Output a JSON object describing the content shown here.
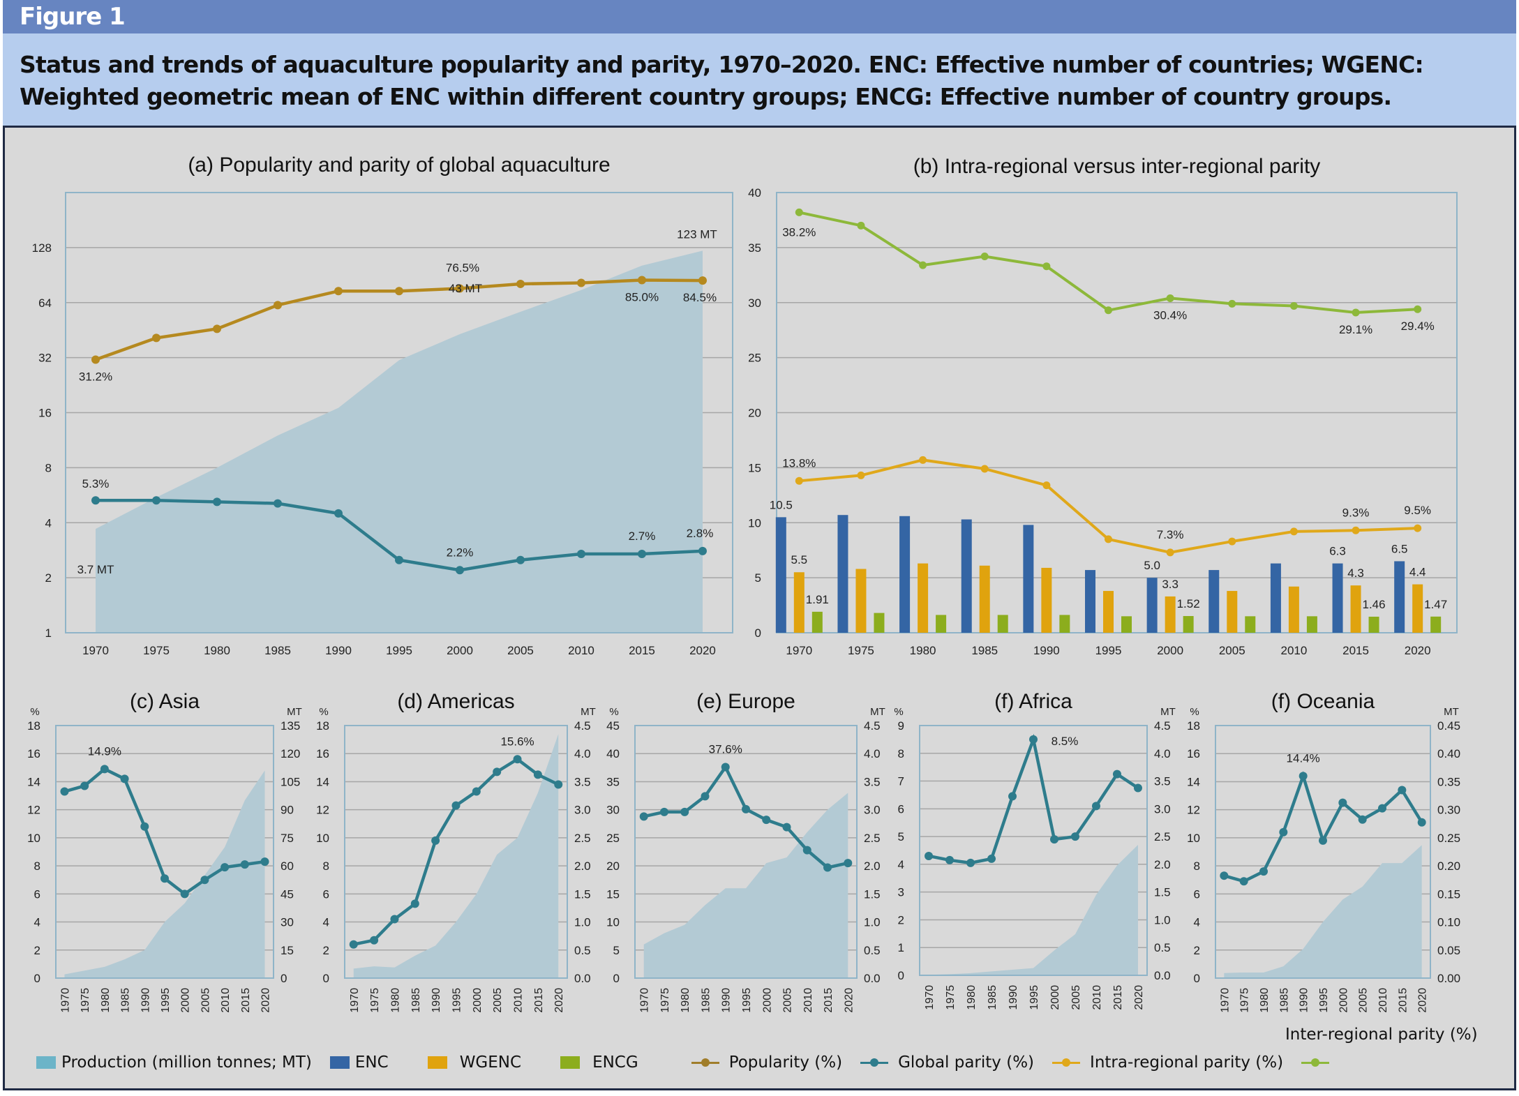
{
  "figure_label": "Figure 1",
  "caption": "Status and trends of aquaculture popularity and parity, 1970–2020. ENC: Effective number of countries; WGENC: Weighted geometric mean of ENC within different country groups; ENCG: Effective number of country groups.",
  "colors": {
    "production": "#b3cad4",
    "popularity": "#b5891f",
    "global_parity": "#2e7c8c",
    "intra_regional": "#e0a81a",
    "inter_regional": "#8db83a",
    "enc": "#3465a4",
    "wgenc": "#e0a30e",
    "encg": "#8cad1d"
  },
  "legend": {
    "production": "Production (million tonnes; MT)",
    "enc": "ENC",
    "wgenc": "WGENC",
    "encg": "ENCG",
    "popularity": "Popularity (%)",
    "global_parity": "Global parity (%)",
    "intra_regional": "Intra-regional parity (%)",
    "inter_regional": "Inter-regional parity (%)"
  },
  "chart_data": [
    {
      "id": "a",
      "type": "line",
      "title": "(a) Popularity and parity of global aquaculture",
      "x": [
        1970,
        1975,
        1980,
        1985,
        1990,
        1995,
        2000,
        2005,
        2010,
        2015,
        2020
      ],
      "yscale": "log2",
      "ylim": [
        1,
        256
      ],
      "yticks": [
        1,
        2,
        4,
        8,
        16,
        32,
        64,
        128
      ],
      "grid": true,
      "series": [
        {
          "name": "Production (million tonnes; MT)",
          "kind": "area",
          "values": [
            3.7,
            5.5,
            8,
            12,
            17,
            31,
            43,
            57,
            75,
            102,
            123
          ]
        },
        {
          "name": "Popularity (%)",
          "kind": "line",
          "values": [
            31.2,
            41,
            46,
            62,
            74,
            74,
            76.5,
            81,
            82,
            85.0,
            84.5
          ]
        },
        {
          "name": "Global parity (%)",
          "kind": "line",
          "values": [
            5.3,
            5.3,
            5.2,
            5.1,
            4.5,
            2.5,
            2.2,
            2.5,
            2.7,
            2.7,
            2.8
          ]
        }
      ],
      "annotations": [
        {
          "series": "Production (million tonnes; MT)",
          "x": 1970,
          "text": "3.7 MT"
        },
        {
          "series": "Production (million tonnes; MT)",
          "x": 2000,
          "text": "43 MT"
        },
        {
          "series": "Production (million tonnes; MT)",
          "x": 2020,
          "text": "123 MT"
        },
        {
          "series": "Popularity (%)",
          "x": 1970,
          "text": "31.2%"
        },
        {
          "series": "Popularity (%)",
          "x": 2000,
          "text": "76.5%"
        },
        {
          "series": "Popularity (%)",
          "x": 2015,
          "text": "85.0%"
        },
        {
          "series": "Popularity (%)",
          "x": 2020,
          "text": "84.5%"
        },
        {
          "series": "Global parity (%)",
          "x": 1970,
          "text": "5.3%"
        },
        {
          "series": "Global parity (%)",
          "x": 2000,
          "text": "2.2%"
        },
        {
          "series": "Global parity (%)",
          "x": 2015,
          "text": "2.7%"
        },
        {
          "series": "Global parity (%)",
          "x": 2020,
          "text": "2.8%"
        }
      ]
    },
    {
      "id": "b",
      "type": "bar",
      "title": "(b) Intra-regional versus inter-regional parity",
      "x": [
        1970,
        1975,
        1980,
        1985,
        1990,
        1995,
        2000,
        2005,
        2010,
        2015,
        2020
      ],
      "ylim": [
        0,
        40
      ],
      "yticks": [
        0,
        5,
        10,
        15,
        20,
        25,
        30,
        35,
        40
      ],
      "grid": true,
      "series": [
        {
          "name": "ENC",
          "kind": "bar",
          "values": [
            10.5,
            10.7,
            10.6,
            10.3,
            9.8,
            5.7,
            5.0,
            5.7,
            6.3,
            6.3,
            6.5
          ]
        },
        {
          "name": "WGENC",
          "kind": "bar",
          "values": [
            5.5,
            5.8,
            6.3,
            6.1,
            5.9,
            3.8,
            3.3,
            3.8,
            4.2,
            4.3,
            4.4
          ]
        },
        {
          "name": "ENCG",
          "kind": "bar",
          "values": [
            1.91,
            1.8,
            1.62,
            1.62,
            1.62,
            1.5,
            1.52,
            1.5,
            1.5,
            1.46,
            1.47
          ]
        },
        {
          "name": "Intra-regional parity (%)",
          "kind": "line",
          "values": [
            13.8,
            14.3,
            15.7,
            14.9,
            13.4,
            8.5,
            7.3,
            8.3,
            9.2,
            9.3,
            9.5
          ]
        },
        {
          "name": "Inter-regional parity (%)",
          "kind": "line",
          "values": [
            38.2,
            37.0,
            33.4,
            34.2,
            33.3,
            29.3,
            30.4,
            29.9,
            29.7,
            29.1,
            29.4
          ]
        }
      ],
      "annotations": [
        {
          "series": "ENC",
          "x": 1970,
          "text": "10.5"
        },
        {
          "series": "ENC",
          "x": 2000,
          "text": "5.0"
        },
        {
          "series": "ENC",
          "x": 2015,
          "text": "6.3"
        },
        {
          "series": "ENC",
          "x": 2020,
          "text": "6.5"
        },
        {
          "series": "WGENC",
          "x": 1970,
          "text": "5.5"
        },
        {
          "series": "WGENC",
          "x": 2000,
          "text": "3.3"
        },
        {
          "series": "WGENC",
          "x": 2015,
          "text": "4.3"
        },
        {
          "series": "WGENC",
          "x": 2020,
          "text": "4.4"
        },
        {
          "series": "ENCG",
          "x": 1970,
          "text": "1.91"
        },
        {
          "series": "ENCG",
          "x": 2000,
          "text": "1.52"
        },
        {
          "series": "ENCG",
          "x": 2015,
          "text": "1.46"
        },
        {
          "series": "ENCG",
          "x": 2020,
          "text": "1.47"
        },
        {
          "series": "Intra-regional parity (%)",
          "x": 1970,
          "text": "13.8%"
        },
        {
          "series": "Intra-regional parity (%)",
          "x": 2000,
          "text": "7.3%"
        },
        {
          "series": "Intra-regional parity (%)",
          "x": 2015,
          "text": "9.3%"
        },
        {
          "series": "Intra-regional parity (%)",
          "x": 2020,
          "text": "9.5%"
        },
        {
          "series": "Inter-regional parity (%)",
          "x": 1970,
          "text": "38.2%"
        },
        {
          "series": "Inter-regional parity (%)",
          "x": 2000,
          "text": "30.4%"
        },
        {
          "series": "Inter-regional parity (%)",
          "x": 2015,
          "text": "29.1%"
        },
        {
          "series": "Inter-regional parity (%)",
          "x": 2020,
          "text": "29.4%"
        }
      ]
    },
    {
      "id": "c",
      "type": "line",
      "title": "(c) Asia",
      "x": [
        1970,
        1975,
        1980,
        1985,
        1990,
        1995,
        2000,
        2005,
        2010,
        2015,
        2020
      ],
      "ylabel": "%",
      "ylabel_right": "MT",
      "ylim": [
        0,
        18
      ],
      "yticks": [
        0,
        2,
        4,
        6,
        8,
        10,
        12,
        14,
        16,
        18
      ],
      "ylim_right": [
        0,
        135
      ],
      "yticks_right": [
        "0",
        "15",
        "30",
        "45",
        "60",
        "75",
        "90",
        "105",
        "120",
        "135"
      ],
      "grid": true,
      "series": [
        {
          "name": "Production (million tonnes; MT)",
          "kind": "area",
          "axis": "right",
          "values": [
            2,
            4,
            6,
            10,
            15,
            30,
            40,
            55,
            70,
            95,
            111
          ]
        },
        {
          "name": "Global parity (%)",
          "kind": "line",
          "axis": "left",
          "values": [
            13.3,
            13.7,
            14.9,
            14.2,
            10.8,
            7.1,
            6.0,
            7.0,
            7.9,
            8.1,
            8.3
          ]
        }
      ],
      "annotations": [
        {
          "series": "Global parity (%)",
          "x": 1980,
          "text": "14.9%"
        }
      ]
    },
    {
      "id": "d",
      "type": "line",
      "title": "(d) Americas",
      "x": [
        1970,
        1975,
        1980,
        1985,
        1990,
        1995,
        2000,
        2005,
        2010,
        2015,
        2020
      ],
      "ylabel": "%",
      "ylabel_right": "MT",
      "ylim": [
        0,
        18
      ],
      "yticks": [
        0,
        2,
        4,
        6,
        8,
        10,
        12,
        14,
        16,
        18
      ],
      "ylim_right": [
        0,
        4.5
      ],
      "yticks_right": [
        "0.0",
        "0.5",
        "1.0",
        "1.5",
        "2.0",
        "2.5",
        "3.0",
        "3.5",
        "4.0",
        "4.5"
      ],
      "grid": true,
      "series": [
        {
          "name": "Production (million tonnes; MT)",
          "kind": "area",
          "axis": "right",
          "values": [
            0.17,
            0.21,
            0.19,
            0.4,
            0.58,
            1.0,
            1.5,
            2.2,
            2.5,
            3.3,
            4.35
          ]
        },
        {
          "name": "Global parity (%)",
          "kind": "line",
          "axis": "left",
          "values": [
            2.4,
            2.7,
            4.2,
            5.3,
            9.8,
            12.3,
            13.3,
            14.7,
            15.6,
            14.5,
            13.8
          ]
        }
      ],
      "annotations": [
        {
          "series": "Global parity (%)",
          "x": 2010,
          "text": "15.6%"
        }
      ]
    },
    {
      "id": "e",
      "type": "line",
      "title": "(e) Europe",
      "x": [
        1970,
        1975,
        1980,
        1985,
        1990,
        1995,
        2000,
        2005,
        2010,
        2015,
        2020
      ],
      "ylabel": "%",
      "ylabel_right": "MT",
      "ylim": [
        0,
        45
      ],
      "yticks": [
        0,
        5,
        10,
        15,
        20,
        25,
        30,
        35,
        40,
        45
      ],
      "ylim_right": [
        0,
        4.5
      ],
      "yticks_right": [
        "0.0",
        "0.5",
        "1.0",
        "1.5",
        "2.0",
        "2.5",
        "3.0",
        "3.5",
        "4.0",
        "4.5"
      ],
      "grid": true,
      "series": [
        {
          "name": "Production (million tonnes; MT)",
          "kind": "area",
          "axis": "right",
          "values": [
            0.6,
            0.8,
            0.95,
            1.3,
            1.6,
            1.6,
            2.05,
            2.15,
            2.6,
            3.0,
            3.3
          ]
        },
        {
          "name": "Global parity (%)",
          "kind": "line",
          "axis": "left",
          "values": [
            28.8,
            29.6,
            29.6,
            32.4,
            37.6,
            30.1,
            28.2,
            26.9,
            22.8,
            19.7,
            20.5
          ]
        }
      ],
      "annotations": [
        {
          "series": "Global parity (%)",
          "x": 1990,
          "text": "37.6%"
        }
      ]
    },
    {
      "id": "f-africa",
      "type": "line",
      "title": "(f) Africa",
      "x": [
        1970,
        1975,
        1980,
        1985,
        1990,
        1995,
        2000,
        2005,
        2010,
        2015,
        2020
      ],
      "ylabel": "%",
      "ylabel_right": "MT",
      "ylim": [
        0,
        9
      ],
      "yticks": [
        0,
        1,
        2,
        3,
        4,
        5,
        6,
        7,
        8,
        9
      ],
      "ylim_right": [
        0,
        4.5
      ],
      "yticks_right": [
        "0.0",
        "0.5",
        "1.0",
        "1.5",
        "2.0",
        "2.5",
        "3.0",
        "3.5",
        "4.0",
        "4.5"
      ],
      "grid": true,
      "series": [
        {
          "name": "Production (million tonnes; MT)",
          "kind": "area",
          "axis": "right",
          "values": [
            0.01,
            0.02,
            0.04,
            0.07,
            0.1,
            0.13,
            0.45,
            0.74,
            1.45,
            1.98,
            2.35
          ]
        },
        {
          "name": "Global parity (%)",
          "kind": "line",
          "axis": "left",
          "values": [
            4.3,
            4.15,
            4.05,
            4.2,
            6.45,
            8.5,
            4.9,
            5.0,
            6.1,
            7.25,
            6.75
          ]
        }
      ],
      "annotations": [
        {
          "series": "Global parity (%)",
          "x": 1995,
          "text": "8.5%"
        }
      ]
    },
    {
      "id": "f-oceania",
      "type": "line",
      "title": "(f) Oceania",
      "x": [
        1970,
        1975,
        1980,
        1985,
        1990,
        1995,
        2000,
        2005,
        2010,
        2015,
        2020
      ],
      "ylabel": "%",
      "ylabel_right": "MT",
      "ylim": [
        0,
        18
      ],
      "yticks": [
        0,
        2,
        4,
        6,
        8,
        10,
        12,
        14,
        16,
        18
      ],
      "ylim_right": [
        0,
        0.45
      ],
      "yticks_right": [
        "0.00",
        "0.05",
        "0.10",
        "0.15",
        "0.20",
        "0.25",
        "0.30",
        "0.35",
        "0.40",
        "0.45"
      ],
      "grid": true,
      "series": [
        {
          "name": "Production (million tonnes; MT)",
          "kind": "area",
          "axis": "right",
          "values": [
            0.009,
            0.01,
            0.01,
            0.021,
            0.052,
            0.1,
            0.14,
            0.163,
            0.205,
            0.205,
            0.237
          ]
        },
        {
          "name": "Global parity (%)",
          "kind": "line",
          "axis": "left",
          "values": [
            7.3,
            6.9,
            7.6,
            10.4,
            14.4,
            9.8,
            12.5,
            11.3,
            12.1,
            13.4,
            11.1
          ]
        }
      ],
      "annotations": [
        {
          "series": "Global parity (%)",
          "x": 1990,
          "text": "14.4%"
        }
      ]
    }
  ]
}
